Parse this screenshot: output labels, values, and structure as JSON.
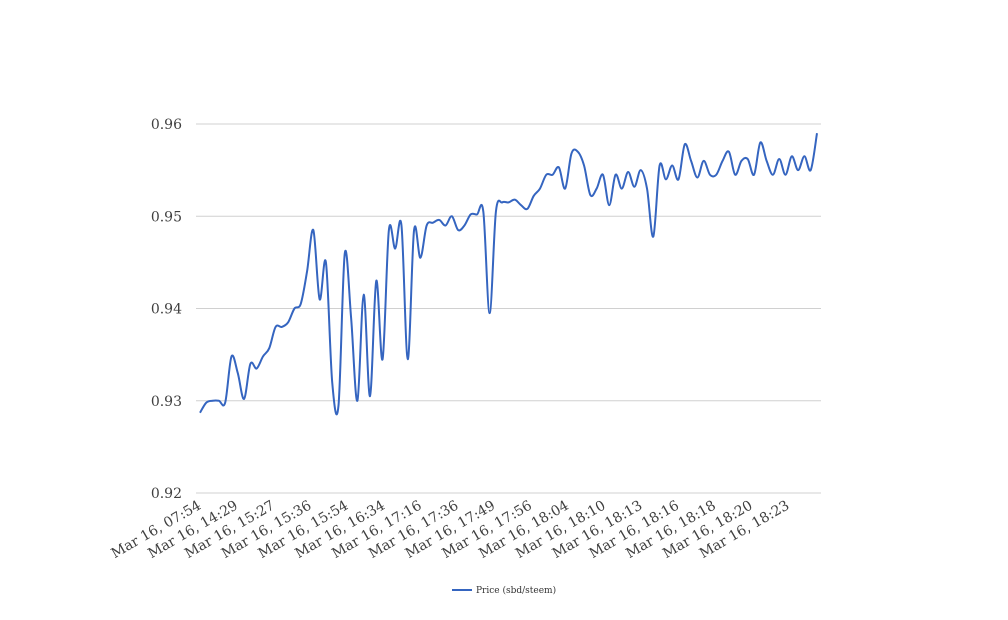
{
  "chart_data": {
    "type": "line",
    "title": "",
    "xlabel": "",
    "ylabel": "",
    "ylim": [
      0.92,
      0.96
    ],
    "yticks": [
      "0.92",
      "0.93",
      "0.94",
      "0.95",
      "0.96"
    ],
    "grid": true,
    "legend_position": "bottom",
    "x_tick_labels": [
      "Mar 16, 07:54",
      "Mar 16, 14:29",
      "Mar 16, 15:27",
      "Mar 16, 15:36",
      "Mar 16, 15:54",
      "Mar 16, 16:34",
      "Mar 16, 17:16",
      "Mar 16, 17:36",
      "Mar 16, 17:49",
      "Mar 16, 17:56",
      "Mar 16, 18:04",
      "Mar 16, 18:10",
      "Mar 16, 18:13",
      "Mar 16, 18:16",
      "Mar 16, 18:18",
      "Mar 16, 18:20",
      "Mar 16, 18:23"
    ],
    "series": [
      {
        "name": "Price (sbd/steem)",
        "color": "#3565c0",
        "values": [
          0.9287,
          0.9298,
          0.93,
          0.93,
          0.9298,
          0.9348,
          0.933,
          0.9302,
          0.934,
          0.9335,
          0.9348,
          0.9357,
          0.938,
          0.938,
          0.9385,
          0.94,
          0.9405,
          0.944,
          0.9485,
          0.941,
          0.945,
          0.932,
          0.9295,
          0.946,
          0.939,
          0.93,
          0.9415,
          0.9305,
          0.943,
          0.9345,
          0.9485,
          0.9465,
          0.949,
          0.9345,
          0.9485,
          0.9455,
          0.949,
          0.9493,
          0.9496,
          0.949,
          0.95,
          0.9485,
          0.949,
          0.9502,
          0.9502,
          0.9505,
          0.9395,
          0.9505,
          0.9515,
          0.9515,
          0.9518,
          0.9512,
          0.9508,
          0.9522,
          0.953,
          0.9545,
          0.9545,
          0.9553,
          0.953,
          0.9568,
          0.957,
          0.9555,
          0.9523,
          0.953,
          0.9545,
          0.9512,
          0.9545,
          0.953,
          0.9548,
          0.9532,
          0.955,
          0.953,
          0.9478,
          0.9555,
          0.954,
          0.9555,
          0.954,
          0.9578,
          0.956,
          0.9542,
          0.956,
          0.9545,
          0.9545,
          0.956,
          0.957,
          0.9545,
          0.956,
          0.9562,
          0.9545,
          0.958,
          0.956,
          0.9545,
          0.9562,
          0.9545,
          0.9565,
          0.955,
          0.9565,
          0.955,
          0.959
        ]
      }
    ]
  }
}
